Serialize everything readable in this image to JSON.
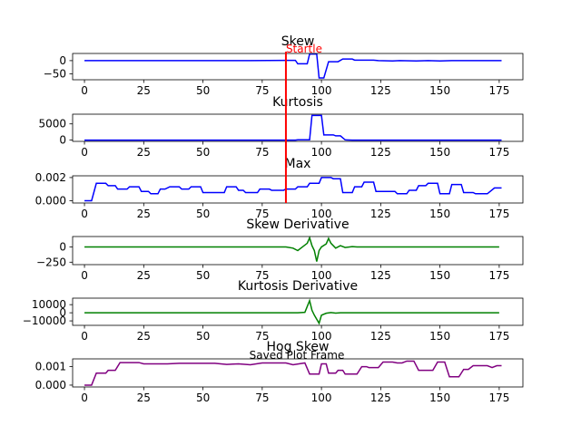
{
  "colors": {
    "blue": "#0000ff",
    "green": "#008000",
    "purple": "#800080",
    "startle_line": "#ff0000",
    "startle_text": "#ff0000"
  },
  "chart_data": [
    {
      "type": "line",
      "title": "Skew",
      "color": "blue",
      "xlim": [
        -5,
        185
      ],
      "ylim": [
        -72,
        27
      ],
      "xticks": [
        0,
        25,
        50,
        75,
        100,
        125,
        150,
        175
      ],
      "yticks": [
        0,
        -50
      ],
      "ytick_labels": [
        "0",
        "−50"
      ],
      "points": [
        [
          0,
          0
        ],
        [
          70,
          0
        ],
        [
          85,
          1
        ],
        [
          89,
          1
        ],
        [
          90,
          -12
        ],
        [
          94,
          -12
        ],
        [
          95,
          25
        ],
        [
          98,
          25
        ],
        [
          99,
          -65
        ],
        [
          101,
          -65
        ],
        [
          103,
          -4
        ],
        [
          107,
          -4
        ],
        [
          109,
          6
        ],
        [
          113,
          6
        ],
        [
          114,
          2
        ],
        [
          122,
          2
        ],
        [
          124,
          0
        ],
        [
          130,
          -1
        ],
        [
          133,
          0
        ],
        [
          140,
          -1
        ],
        [
          145,
          0
        ],
        [
          150,
          -1
        ],
        [
          155,
          0
        ],
        [
          176,
          0
        ]
      ]
    },
    {
      "type": "line",
      "title": "Kurtosis",
      "color": "blue",
      "xlim": [
        -5,
        185
      ],
      "ylim": [
        -400,
        8000
      ],
      "xticks": [
        0,
        25,
        50,
        75,
        100,
        125,
        150,
        175
      ],
      "yticks": [
        0,
        5000
      ],
      "ytick_labels": [
        "0",
        "5000"
      ],
      "points": [
        [
          0,
          0
        ],
        [
          89,
          0
        ],
        [
          90,
          80
        ],
        [
          95,
          80
        ],
        [
          96,
          7600
        ],
        [
          100,
          7600
        ],
        [
          101,
          1600
        ],
        [
          105,
          1600
        ],
        [
          106,
          1300
        ],
        [
          108,
          1300
        ],
        [
          110,
          80
        ],
        [
          113,
          0
        ],
        [
          176,
          0
        ]
      ]
    },
    {
      "type": "line",
      "title": "Max",
      "color": "blue",
      "xlim": [
        -5,
        185
      ],
      "ylim": [
        -0.0002,
        0.00215
      ],
      "xticks": [
        0,
        25,
        50,
        75,
        100,
        125,
        150,
        175
      ],
      "yticks": [
        0.0,
        0.002
      ],
      "ytick_labels": [
        "0.000",
        "0.002"
      ],
      "points": [
        [
          0,
          0
        ],
        [
          3,
          0
        ],
        [
          5,
          0.0015
        ],
        [
          9,
          0.0015
        ],
        [
          10,
          0.0013
        ],
        [
          13,
          0.0013
        ],
        [
          14,
          0.001
        ],
        [
          18,
          0.001
        ],
        [
          19,
          0.0012
        ],
        [
          23,
          0.0012
        ],
        [
          24,
          0.0008
        ],
        [
          27,
          0.0008
        ],
        [
          28,
          0.0006
        ],
        [
          31,
          0.0006
        ],
        [
          32,
          0.001
        ],
        [
          34,
          0.001
        ],
        [
          36,
          0.0012
        ],
        [
          40,
          0.0012
        ],
        [
          41,
          0.001
        ],
        [
          44,
          0.001
        ],
        [
          45,
          0.0012
        ],
        [
          49,
          0.0012
        ],
        [
          50,
          0.0007
        ],
        [
          59,
          0.0007
        ],
        [
          60,
          0.0012
        ],
        [
          64,
          0.0012
        ],
        [
          65,
          0.0009
        ],
        [
          67,
          0.0009
        ],
        [
          68,
          0.0007
        ],
        [
          73,
          0.0007
        ],
        [
          74,
          0.001
        ],
        [
          78,
          0.001
        ],
        [
          79,
          0.0009
        ],
        [
          84,
          0.0009
        ],
        [
          85,
          0.001
        ],
        [
          89,
          0.001
        ],
        [
          90,
          0.0012
        ],
        [
          94,
          0.0012
        ],
        [
          95,
          0.0015
        ],
        [
          99,
          0.0015
        ],
        [
          100,
          0.002
        ],
        [
          104,
          0.002
        ],
        [
          105,
          0.0019
        ],
        [
          108,
          0.0019
        ],
        [
          109,
          0.0007
        ],
        [
          113,
          0.0007
        ],
        [
          114,
          0.0012
        ],
        [
          117,
          0.0012
        ],
        [
          118,
          0.0016
        ],
        [
          122,
          0.0016
        ],
        [
          123,
          0.0008
        ],
        [
          131,
          0.0008
        ],
        [
          132,
          0.0006
        ],
        [
          136,
          0.0006
        ],
        [
          137,
          0.0009
        ],
        [
          140,
          0.0009
        ],
        [
          141,
          0.0013
        ],
        [
          144,
          0.0013
        ],
        [
          145,
          0.0015
        ],
        [
          149,
          0.0015
        ],
        [
          150,
          0.0006
        ],
        [
          154,
          0.0006
        ],
        [
          155,
          0.0014
        ],
        [
          159,
          0.0014
        ],
        [
          160,
          0.0007
        ],
        [
          164,
          0.0007
        ],
        [
          165,
          0.0006
        ],
        [
          170,
          0.0006
        ],
        [
          173,
          0.0011
        ],
        [
          176,
          0.0011
        ]
      ]
    },
    {
      "type": "line",
      "title": "Skew Derivative",
      "color": "green",
      "xlim": [
        -5,
        185
      ],
      "ylim": [
        -290,
        170
      ],
      "xticks": [
        0,
        25,
        50,
        75,
        100,
        125,
        150,
        175
      ],
      "yticks": [
        0,
        -250
      ],
      "ytick_labels": [
        "0",
        "−250"
      ],
      "points": [
        [
          0,
          0
        ],
        [
          85,
          0
        ],
        [
          88,
          -20
        ],
        [
          90,
          -60
        ],
        [
          92,
          0
        ],
        [
          94,
          60
        ],
        [
          95,
          150
        ],
        [
          96,
          20
        ],
        [
          97,
          -60
        ],
        [
          98,
          -240
        ],
        [
          99,
          -60
        ],
        [
          100,
          0
        ],
        [
          102,
          50
        ],
        [
          103,
          140
        ],
        [
          104,
          60
        ],
        [
          106,
          -20
        ],
        [
          108,
          20
        ],
        [
          110,
          -10
        ],
        [
          113,
          5
        ],
        [
          115,
          0
        ],
        [
          175,
          0
        ]
      ]
    },
    {
      "type": "line",
      "title": "Kurtosis Derivative",
      "color": "green",
      "xlim": [
        -5,
        185
      ],
      "ylim": [
        -15500,
        18000
      ],
      "xticks": [
        0,
        25,
        50,
        75,
        100,
        125,
        150,
        175
      ],
      "yticks": [
        10000,
        0,
        -10000
      ],
      "ytick_labels": [
        "10000",
        "0",
        "−10000"
      ],
      "points": [
        [
          0,
          0
        ],
        [
          90,
          0
        ],
        [
          93,
          500
        ],
        [
          95,
          15000
        ],
        [
          96,
          3000
        ],
        [
          97,
          -3000
        ],
        [
          99,
          -13000
        ],
        [
          100,
          -3000
        ],
        [
          102,
          -600
        ],
        [
          104,
          200
        ],
        [
          106,
          -400
        ],
        [
          108,
          0
        ],
        [
          175,
          0
        ]
      ]
    },
    {
      "type": "line",
      "title": "Hog Skew",
      "color": "purple",
      "xlim": [
        -5,
        185
      ],
      "ylim": [
        -0.0001,
        0.00142
      ],
      "xticks": [
        0,
        25,
        50,
        75,
        100,
        125,
        150,
        175
      ],
      "yticks": [
        0.0,
        0.001
      ],
      "ytick_labels": [
        "0.000",
        "0.001"
      ],
      "points": [
        [
          0,
          0
        ],
        [
          3,
          0
        ],
        [
          5,
          0.00065
        ],
        [
          9,
          0.00065
        ],
        [
          10,
          0.0008
        ],
        [
          13,
          0.0008
        ],
        [
          15,
          0.00122
        ],
        [
          23,
          0.00122
        ],
        [
          25,
          0.00115
        ],
        [
          35,
          0.00115
        ],
        [
          40,
          0.00118
        ],
        [
          55,
          0.00118
        ],
        [
          60,
          0.00112
        ],
        [
          65,
          0.00115
        ],
        [
          70,
          0.0011
        ],
        [
          75,
          0.0012
        ],
        [
          85,
          0.0012
        ],
        [
          88,
          0.0011
        ],
        [
          93,
          0.0012
        ],
        [
          95,
          0.0006
        ],
        [
          99,
          0.0006
        ],
        [
          100,
          0.00115
        ],
        [
          102,
          0.00115
        ],
        [
          103,
          0.00065
        ],
        [
          106,
          0.00065
        ],
        [
          107,
          0.0008
        ],
        [
          109,
          0.0008
        ],
        [
          110,
          0.0006
        ],
        [
          115,
          0.0006
        ],
        [
          117,
          0.001
        ],
        [
          119,
          0.001
        ],
        [
          120,
          0.00095
        ],
        [
          124,
          0.00095
        ],
        [
          126,
          0.00125
        ],
        [
          130,
          0.00125
        ],
        [
          132,
          0.0012
        ],
        [
          134,
          0.0012
        ],
        [
          136,
          0.0013
        ],
        [
          139,
          0.0013
        ],
        [
          141,
          0.0008
        ],
        [
          147,
          0.0008
        ],
        [
          149,
          0.00125
        ],
        [
          152,
          0.00125
        ],
        [
          154,
          0.00045
        ],
        [
          158,
          0.00045
        ],
        [
          160,
          0.00085
        ],
        [
          162,
          0.00085
        ],
        [
          164,
          0.00105
        ],
        [
          170,
          0.00105
        ],
        [
          172,
          0.00095
        ],
        [
          174,
          0.00105
        ],
        [
          176,
          0.00105
        ]
      ]
    }
  ],
  "annotations": {
    "startle_label": "Startle",
    "startle_x": 85,
    "saved_plot_label": "Saved Plot Frame"
  }
}
